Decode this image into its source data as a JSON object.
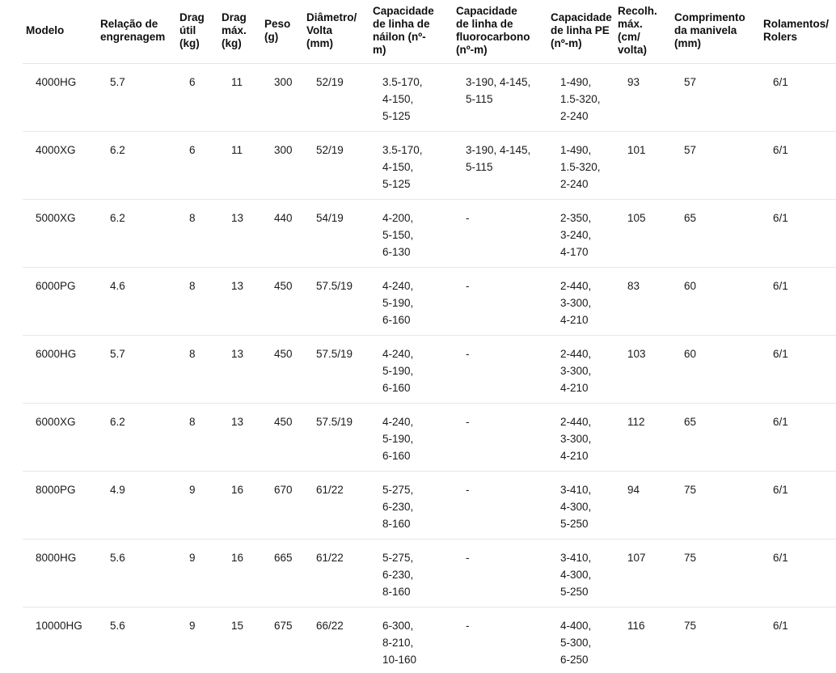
{
  "colors": {
    "background": "#ffffff",
    "text": "#1a1a1a",
    "header_text": "#0f0f0f",
    "row_divider": "#e7e7e7"
  },
  "table": {
    "column_order": [
      "modelo",
      "relacao",
      "drag_util",
      "drag_max",
      "peso",
      "diametro",
      "nailon",
      "fluoro",
      "pe",
      "recolh",
      "manivela",
      "rolamentos"
    ],
    "headers": {
      "modelo": "Modelo",
      "relacao": "Relação de\nengrenagem",
      "drag_util": "Drag\nútil\n(kg)",
      "drag_max": "Drag\nmáx.\n(kg)",
      "peso": "Peso\n(g)",
      "diametro": "Diâmetro/\nVolta\n(mm)",
      "nailon": "Capacidade\nde linha de\nnáilon (nº-\nm)",
      "fluoro": "Capacidade\nde linha de\nfluorocarbono\n(nº-m)",
      "pe": "Capacidade\nde linha PE\n(nº-m)",
      "recolh": "Recolh.\nmáx.\n(cm/\nvolta)",
      "manivela": "Comprimento\nda manivela\n(mm)",
      "rolamentos": "Rolamentos/\nRolers"
    },
    "rows": [
      {
        "modelo": "4000HG",
        "relacao": "5.7",
        "drag_util": "6",
        "drag_max": "11",
        "peso": "300",
        "diametro": "52/19",
        "nailon": "3.5-170,\n4-150,\n5-125",
        "fluoro": "3-190, 4-145,\n5-115",
        "pe": "1-490,\n1.5-320,\n2-240",
        "recolh": "93",
        "manivela": "57",
        "rolamentos": "6/1"
      },
      {
        "modelo": "4000XG",
        "relacao": "6.2",
        "drag_util": "6",
        "drag_max": "11",
        "peso": "300",
        "diametro": "52/19",
        "nailon": "3.5-170,\n4-150,\n5-125",
        "fluoro": "3-190, 4-145,\n5-115",
        "pe": "1-490,\n1.5-320,\n2-240",
        "recolh": "101",
        "manivela": "57",
        "rolamentos": "6/1"
      },
      {
        "modelo": "5000XG",
        "relacao": "6.2",
        "drag_util": "8",
        "drag_max": "13",
        "peso": "440",
        "diametro": "54/19",
        "nailon": "4-200,\n5-150,\n6-130",
        "fluoro": "-",
        "pe": "2-350,\n3-240,\n4-170",
        "recolh": "105",
        "manivela": "65",
        "rolamentos": "6/1"
      },
      {
        "modelo": "6000PG",
        "relacao": "4.6",
        "drag_util": "8",
        "drag_max": "13",
        "peso": "450",
        "diametro": "57.5/19",
        "nailon": "4-240,\n5-190,\n6-160",
        "fluoro": "-",
        "pe": "2-440,\n3-300,\n4-210",
        "recolh": "83",
        "manivela": "60",
        "rolamentos": "6/1"
      },
      {
        "modelo": "6000HG",
        "relacao": "5.7",
        "drag_util": "8",
        "drag_max": "13",
        "peso": "450",
        "diametro": "57.5/19",
        "nailon": "4-240,\n5-190,\n6-160",
        "fluoro": "-",
        "pe": "2-440,\n3-300,\n4-210",
        "recolh": "103",
        "manivela": "60",
        "rolamentos": "6/1"
      },
      {
        "modelo": "6000XG",
        "relacao": "6.2",
        "drag_util": "8",
        "drag_max": "13",
        "peso": "450",
        "diametro": "57.5/19",
        "nailon": "4-240,\n5-190,\n6-160",
        "fluoro": "-",
        "pe": "2-440,\n3-300,\n4-210",
        "recolh": "112",
        "manivela": "65",
        "rolamentos": "6/1"
      },
      {
        "modelo": "8000PG",
        "relacao": "4.9",
        "drag_util": "9",
        "drag_max": "16",
        "peso": "670",
        "diametro": "61/22",
        "nailon": "5-275,\n6-230,\n8-160",
        "fluoro": "-",
        "pe": "3-410,\n4-300,\n5-250",
        "recolh": "94",
        "manivela": "75",
        "rolamentos": "6/1"
      },
      {
        "modelo": "8000HG",
        "relacao": "5.6",
        "drag_util": "9",
        "drag_max": "16",
        "peso": "665",
        "diametro": "61/22",
        "nailon": "5-275,\n6-230,\n8-160",
        "fluoro": "-",
        "pe": "3-410,\n4-300,\n5-250",
        "recolh": "107",
        "manivela": "75",
        "rolamentos": "6/1"
      },
      {
        "modelo": "10000HG",
        "relacao": "5.6",
        "drag_util": "9",
        "drag_max": "15",
        "peso": "675",
        "diametro": "66/22",
        "nailon": "6-300,\n8-210,\n10-160",
        "fluoro": "-",
        "pe": "4-400,\n5-300,\n6-250",
        "recolh": "116",
        "manivela": "75",
        "rolamentos": "6/1"
      }
    ]
  },
  "chart_data": {
    "type": "table",
    "title": "",
    "columns": [
      "Modelo",
      "Relação de engrenagem",
      "Drag útil (kg)",
      "Drag máx. (kg)",
      "Peso (g)",
      "Diâmetro/Volta (mm)",
      "Capacidade de linha de náilon (nº-m)",
      "Capacidade de linha de fluorocarbono (nº-m)",
      "Capacidade de linha PE (nº-m)",
      "Recolh. máx. (cm/volta)",
      "Comprimento da manivela (mm)",
      "Rolamentos/Rolers"
    ],
    "rows": [
      [
        "4000HG",
        "5.7",
        "6",
        "11",
        "300",
        "52/19",
        "3.5-170, 4-150, 5-125",
        "3-190, 4-145, 5-115",
        "1-490, 1.5-320, 2-240",
        "93",
        "57",
        "6/1"
      ],
      [
        "4000XG",
        "6.2",
        "6",
        "11",
        "300",
        "52/19",
        "3.5-170, 4-150, 5-125",
        "3-190, 4-145, 5-115",
        "1-490, 1.5-320, 2-240",
        "101",
        "57",
        "6/1"
      ],
      [
        "5000XG",
        "6.2",
        "8",
        "13",
        "440",
        "54/19",
        "4-200, 5-150, 6-130",
        "-",
        "2-350, 3-240, 4-170",
        "105",
        "65",
        "6/1"
      ],
      [
        "6000PG",
        "4.6",
        "8",
        "13",
        "450",
        "57.5/19",
        "4-240, 5-190, 6-160",
        "-",
        "2-440, 3-300, 4-210",
        "83",
        "60",
        "6/1"
      ],
      [
        "6000HG",
        "5.7",
        "8",
        "13",
        "450",
        "57.5/19",
        "4-240, 5-190, 6-160",
        "-",
        "2-440, 3-300, 4-210",
        "103",
        "60",
        "6/1"
      ],
      [
        "6000XG",
        "6.2",
        "8",
        "13",
        "450",
        "57.5/19",
        "4-240, 5-190, 6-160",
        "-",
        "2-440, 3-300, 4-210",
        "112",
        "65",
        "6/1"
      ],
      [
        "8000PG",
        "4.9",
        "9",
        "16",
        "670",
        "61/22",
        "5-275, 6-230, 8-160",
        "-",
        "3-410, 4-300, 5-250",
        "94",
        "75",
        "6/1"
      ],
      [
        "8000HG",
        "5.6",
        "9",
        "16",
        "665",
        "61/22",
        "5-275, 6-230, 8-160",
        "-",
        "3-410, 4-300, 5-250",
        "107",
        "75",
        "6/1"
      ],
      [
        "10000HG",
        "5.6",
        "9",
        "15",
        "675",
        "66/22",
        "6-300, 8-210, 10-160",
        "-",
        "4-400, 5-300, 6-250",
        "116",
        "75",
        "6/1"
      ]
    ]
  }
}
